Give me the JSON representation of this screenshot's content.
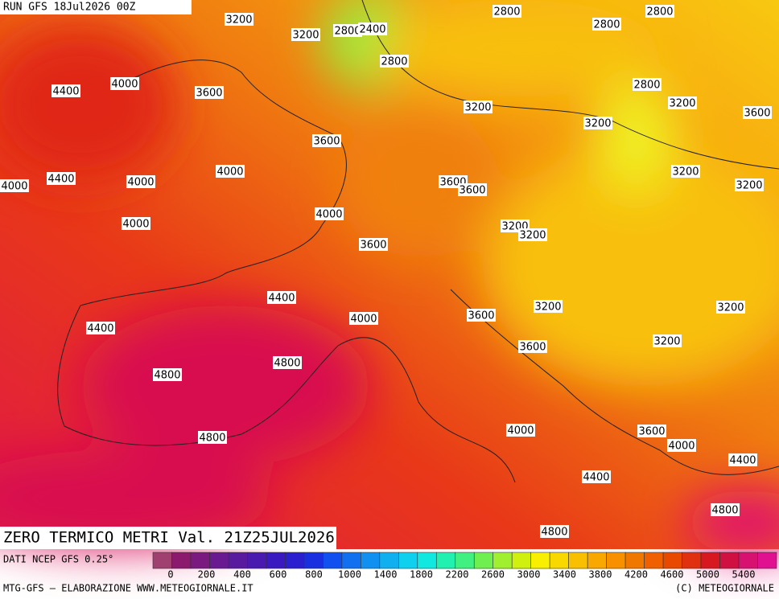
{
  "header": {
    "run": "RUN GFS 18Jul2026 00Z"
  },
  "map": {
    "contour_labels": [
      3200,
      3200,
      2800,
      2400,
      2800,
      2800,
      2800,
      2800,
      4400,
      4000,
      3600,
      2800,
      3200,
      3600,
      3200,
      3200,
      3600,
      4400,
      4000,
      4000,
      4000,
      3200,
      3200,
      3600,
      3600,
      4000,
      4000,
      3200,
      3200,
      3600,
      4400,
      3200,
      3200,
      3600,
      4000,
      4400,
      3600,
      3200,
      4800,
      4800,
      4000,
      3600,
      4000,
      4800,
      4400,
      4400,
      4800,
      4800
    ]
  },
  "title": "ZERO TERMICO METRI Val. 21Z25JUL2026",
  "legend": {
    "source": "DATI NCEP GFS 0.25°",
    "colors": [
      "#a04070",
      "#8b1a6e",
      "#7a1a80",
      "#6a1a90",
      "#5a1aa0",
      "#4a1ab0",
      "#3a1ac0",
      "#2a20d0",
      "#1a30e0",
      "#1050f0",
      "#1070f0",
      "#1090f0",
      "#10b0f0",
      "#10d0f0",
      "#10e8e0",
      "#20f0b0",
      "#40f080",
      "#70f050",
      "#a0f030",
      "#d0f010",
      "#f8f000",
      "#f8d800",
      "#f8c000",
      "#f8a800",
      "#f89000",
      "#f07800",
      "#f06000",
      "#e84800",
      "#e03010",
      "#d81820",
      "#d01040",
      "#d81070",
      "#e01090"
    ],
    "labels": [
      0,
      200,
      400,
      600,
      800,
      1000,
      1400,
      1800,
      2200,
      2600,
      3000,
      3400,
      3800,
      4200,
      4600,
      5000,
      5400
    ]
  },
  "footer": {
    "credit": "MTG-GFS — ELABORAZIONE WWW.METEOGIORNALE.IT",
    "copyright": "(C) METEOGIORNALE"
  }
}
